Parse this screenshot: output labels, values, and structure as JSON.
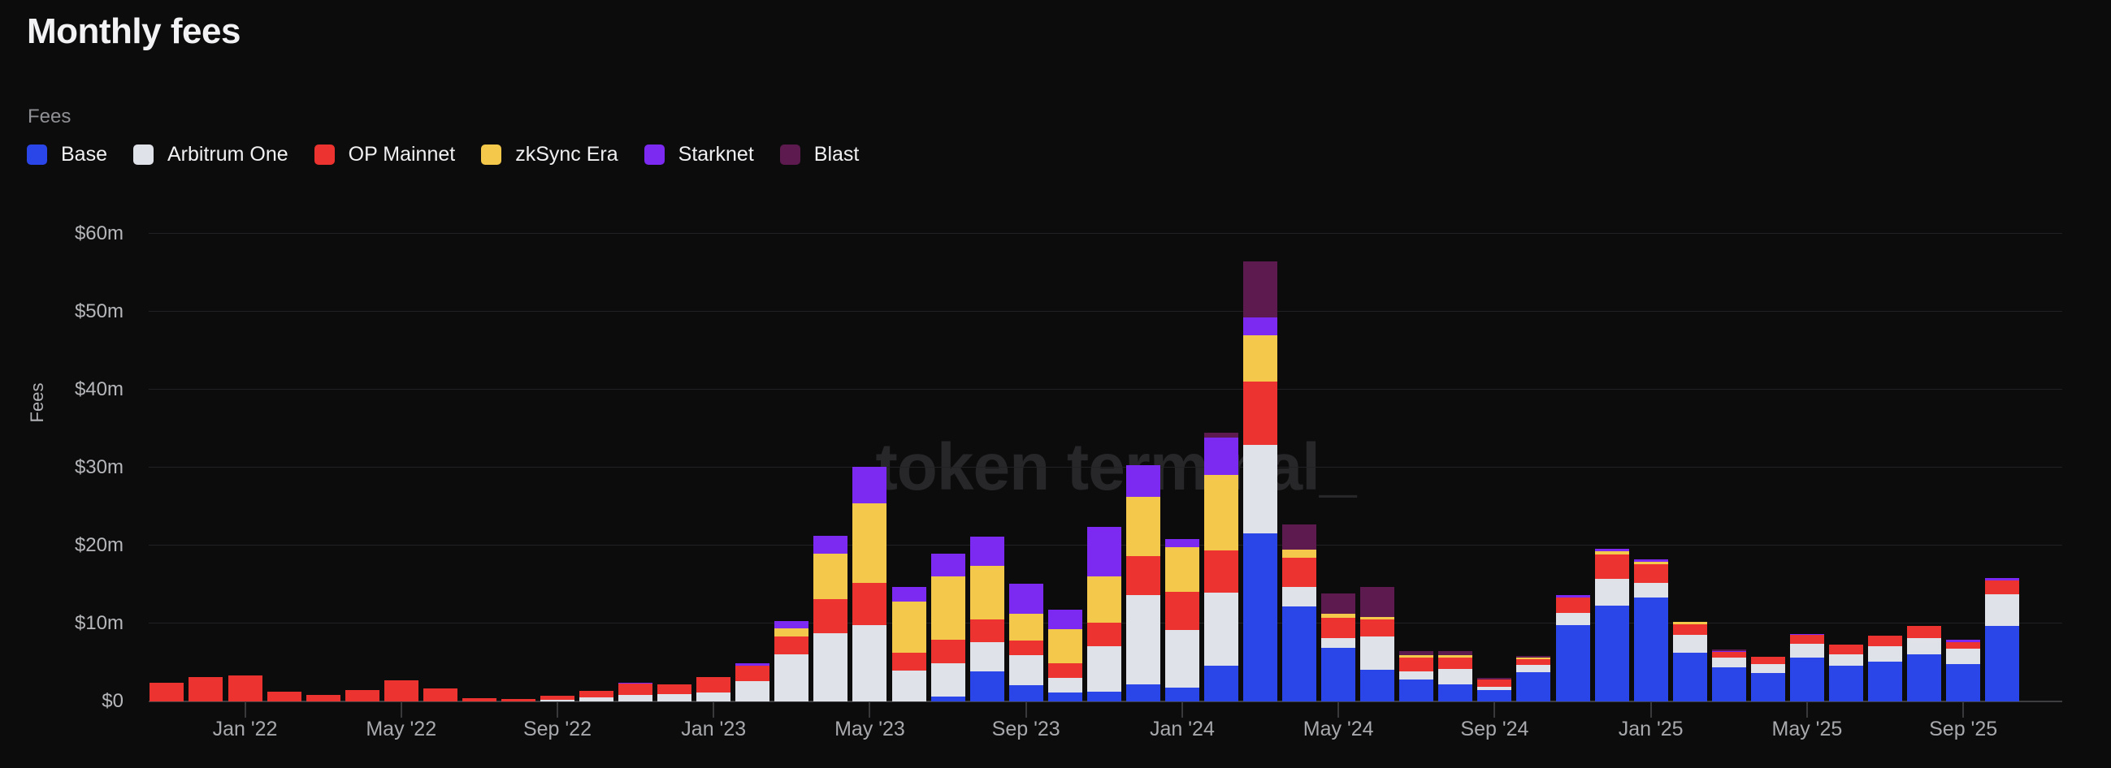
{
  "page": {
    "title": "Monthly fees"
  },
  "chart_header": {
    "series_label": "Fees"
  },
  "watermark": "token terminal_",
  "colors": {
    "background": "#0c0c0d",
    "title_text": "#f2f2f4",
    "muted_text": "#8f9094",
    "axis_text": "#b6b7ba",
    "gridline": "#212124",
    "baseline": "#3e3e41",
    "watermark": "#27272a"
  },
  "chart_data": {
    "type": "bar",
    "stacked": true,
    "title": "Monthly fees",
    "xlabel": "",
    "ylabel": "Fees",
    "unit": "$m",
    "ylim": [
      0,
      60
    ],
    "grid": "horizontal",
    "legend_position": "top-left",
    "y_ticks": [
      {
        "value": 0,
        "label": "$0"
      },
      {
        "value": 10,
        "label": "$10m"
      },
      {
        "value": 20,
        "label": "$20m"
      },
      {
        "value": 30,
        "label": "$30m"
      },
      {
        "value": 40,
        "label": "$40m"
      },
      {
        "value": 50,
        "label": "$50m"
      },
      {
        "value": 60,
        "label": "$60m"
      }
    ],
    "x_ticks": [
      {
        "month_index": 2,
        "label": "Jan '22"
      },
      {
        "month_index": 6,
        "label": "May '22"
      },
      {
        "month_index": 10,
        "label": "Sep '22"
      },
      {
        "month_index": 14,
        "label": "Jan '23"
      },
      {
        "month_index": 18,
        "label": "May '23"
      },
      {
        "month_index": 22,
        "label": "Sep '23"
      },
      {
        "month_index": 26,
        "label": "Jan '24"
      },
      {
        "month_index": 30,
        "label": "May '24"
      },
      {
        "month_index": 34,
        "label": "Sep '24"
      },
      {
        "month_index": 38,
        "label": "Jan '25"
      },
      {
        "month_index": 42,
        "label": "May '25"
      },
      {
        "month_index": 46,
        "label": "Sep '25"
      }
    ],
    "series": [
      {
        "key": "base",
        "label": "Base",
        "color": "#2b46e8"
      },
      {
        "key": "arb",
        "label": "Arbitrum One",
        "color": "#e0e2ea"
      },
      {
        "key": "op",
        "label": "OP Mainnet",
        "color": "#ed332f"
      },
      {
        "key": "zk",
        "label": "zkSync Era",
        "color": "#f4c84a"
      },
      {
        "key": "stark",
        "label": "Starknet",
        "color": "#7c2af2"
      },
      {
        "key": "blast",
        "label": "Blast",
        "color": "#5d1a4e"
      }
    ],
    "months": [
      {
        "m": "Nov '21",
        "v": {
          "op": 2.4
        }
      },
      {
        "m": "Dec '21",
        "v": {
          "op": 3.1
        }
      },
      {
        "m": "Jan '22",
        "v": {
          "op": 3.3
        }
      },
      {
        "m": "Feb '22",
        "v": {
          "op": 1.25
        }
      },
      {
        "m": "Mar '22",
        "v": {
          "op": 0.8
        }
      },
      {
        "m": "Apr '22",
        "v": {
          "op": 1.5
        }
      },
      {
        "m": "May '22",
        "v": {
          "op": 2.7
        }
      },
      {
        "m": "Jun '22",
        "v": {
          "op": 1.7
        }
      },
      {
        "m": "Jul '22",
        "v": {
          "op": 0.45
        }
      },
      {
        "m": "Aug '22",
        "v": {
          "op": 0.3
        }
      },
      {
        "m": "Sep '22",
        "v": {
          "arb": 0.25,
          "op": 0.5
        }
      },
      {
        "m": "Oct '22",
        "v": {
          "arb": 0.5,
          "op": 0.9
        }
      },
      {
        "m": "Nov '22",
        "v": {
          "arb": 0.85,
          "op": 1.4,
          "stark": 0.2
        }
      },
      {
        "m": "Dec '22",
        "v": {
          "arb": 0.95,
          "op": 1.2
        }
      },
      {
        "m": "Jan '23",
        "v": {
          "arb": 1.1,
          "op": 2.0
        }
      },
      {
        "m": "Feb '23",
        "v": {
          "arb": 2.6,
          "op": 2.0,
          "stark": 0.25
        }
      },
      {
        "m": "Mar '23",
        "v": {
          "arb": 6.0,
          "op": 2.3,
          "zk": 1.1,
          "stark": 0.95
        }
      },
      {
        "m": "Apr '23",
        "v": {
          "arb": 8.8,
          "op": 4.3,
          "zk": 5.9,
          "stark": 2.3
        }
      },
      {
        "m": "May '23",
        "v": {
          "arb": 9.8,
          "op": 5.4,
          "zk": 10.2,
          "stark": 4.7
        }
      },
      {
        "m": "Jun '23",
        "v": {
          "arb": 4.0,
          "op": 2.3,
          "zk": 6.5,
          "stark": 1.9
        }
      },
      {
        "m": "Jul '23",
        "v": {
          "base": 0.6,
          "arb": 4.3,
          "op": 3.0,
          "zk": 8.1,
          "stark": 3.0
        }
      },
      {
        "m": "Aug '23",
        "v": {
          "base": 3.9,
          "arb": 3.7,
          "op": 2.9,
          "zk": 6.9,
          "stark": 3.8
        }
      },
      {
        "m": "Sep '23",
        "v": {
          "base": 2.1,
          "arb": 3.8,
          "op": 1.9,
          "zk": 3.5,
          "stark": 3.8
        }
      },
      {
        "m": "Oct '23",
        "v": {
          "base": 1.1,
          "arb": 1.9,
          "op": 1.9,
          "zk": 4.4,
          "stark": 2.5
        }
      },
      {
        "m": "Nov '23",
        "v": {
          "base": 1.3,
          "arb": 5.8,
          "op": 3.0,
          "zk": 5.9,
          "stark": 6.4
        }
      },
      {
        "m": "Dec '23",
        "v": {
          "base": 2.2,
          "arb": 11.5,
          "op": 5.0,
          "zk": 7.6,
          "stark": 4.0
        }
      },
      {
        "m": "Jan '24",
        "v": {
          "base": 1.8,
          "arb": 7.4,
          "op": 4.9,
          "zk": 5.7,
          "stark": 1.0
        }
      },
      {
        "m": "Feb '24",
        "v": {
          "base": 4.6,
          "arb": 9.4,
          "op": 5.4,
          "zk": 9.7,
          "stark": 4.8,
          "blast": 0.6
        }
      },
      {
        "m": "Mar '24",
        "v": {
          "base": 21.6,
          "arb": 11.3,
          "op": 8.1,
          "zk": 6.0,
          "stark": 2.3,
          "blast": 7.2
        }
      },
      {
        "m": "Apr '24",
        "v": {
          "base": 12.2,
          "arb": 2.5,
          "op": 3.75,
          "zk": 1.05,
          "blast": 3.2
        }
      },
      {
        "m": "May '24",
        "v": {
          "base": 6.9,
          "arb": 1.2,
          "op": 2.6,
          "zk": 0.6,
          "blast": 2.6
        }
      },
      {
        "m": "Jun '24",
        "v": {
          "base": 4.05,
          "arb": 4.3,
          "op": 2.2,
          "zk": 0.3,
          "blast": 3.8
        }
      },
      {
        "m": "Jul '24",
        "v": {
          "base": 2.85,
          "arb": 1.0,
          "op": 1.75,
          "zk": 0.3,
          "blast": 0.6
        }
      },
      {
        "m": "Aug '24",
        "v": {
          "base": 2.15,
          "arb": 2.0,
          "op": 1.45,
          "zk": 0.35,
          "blast": 0.5
        }
      },
      {
        "m": "Sep '24",
        "v": {
          "base": 1.45,
          "arb": 0.4,
          "op": 1.0,
          "blast": 0.17
        }
      },
      {
        "m": "Oct '24",
        "v": {
          "base": 3.8,
          "arb": 0.85,
          "op": 0.75,
          "zk": 0.28,
          "blast": 0.17
        }
      },
      {
        "m": "Nov '24",
        "v": {
          "base": 9.8,
          "arb": 1.55,
          "op": 1.95,
          "stark": 0.3
        }
      },
      {
        "m": "Dec '24",
        "v": {
          "base": 12.3,
          "arb": 3.4,
          "op": 3.2,
          "zk": 0.35,
          "stark": 0.35
        }
      },
      {
        "m": "Jan '25",
        "v": {
          "base": 13.3,
          "arb": 1.9,
          "op": 2.45,
          "zk": 0.3,
          "stark": 0.25
        }
      },
      {
        "m": "Feb '25",
        "v": {
          "base": 6.25,
          "arb": 2.25,
          "op": 1.45,
          "zk": 0.28
        }
      },
      {
        "m": "Mar '25",
        "v": {
          "base": 4.4,
          "arb": 1.2,
          "op": 0.76,
          "stark": 0.15,
          "blast": 0.15
        }
      },
      {
        "m": "Apr '25",
        "v": {
          "base": 3.6,
          "arb": 1.15,
          "op": 0.95
        }
      },
      {
        "m": "May '25",
        "v": {
          "base": 5.6,
          "arb": 1.85,
          "op": 1.05,
          "stark": 0.2
        }
      },
      {
        "m": "Jun '25",
        "v": {
          "base": 4.6,
          "arb": 1.4,
          "op": 1.3
        }
      },
      {
        "m": "Jul '25",
        "v": {
          "base": 5.1,
          "arb": 2.0,
          "op": 1.3
        }
      },
      {
        "m": "Aug '25",
        "v": {
          "base": 6.05,
          "arb": 2.1,
          "op": 1.5
        }
      },
      {
        "m": "Sep '25",
        "v": {
          "base": 4.75,
          "arb": 2.0,
          "op": 0.9,
          "stark": 0.25
        }
      },
      {
        "m": "Oct '25",
        "v": {
          "base": 9.7,
          "arb": 4.1,
          "op": 1.75,
          "stark": 0.25
        }
      }
    ]
  }
}
